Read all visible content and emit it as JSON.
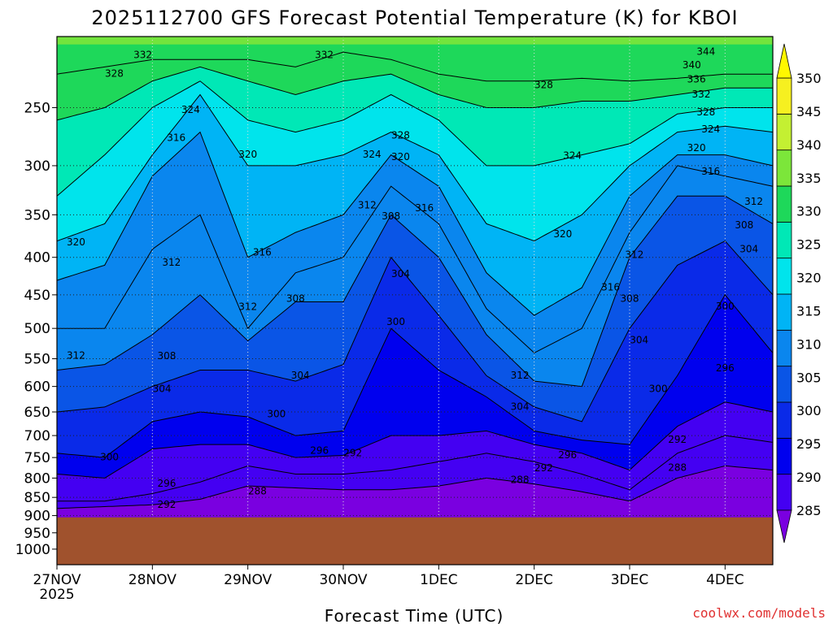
{
  "chart_data": {
    "type": "heatmap",
    "title": "2025112700 GFS Forecast Potential Temperature (K) for KBOI",
    "xlabel": "Forecast Time (UTC)",
    "ylabel": "",
    "x_ticks": [
      "27NOV",
      "28NOV",
      "29NOV",
      "30NOV",
      "1DEC",
      "2DEC",
      "3DEC",
      "4DEC"
    ],
    "x_year": "2025",
    "y_ticks": [
      250,
      300,
      350,
      400,
      450,
      500,
      550,
      600,
      650,
      700,
      750,
      800,
      850,
      900,
      950,
      1000
    ],
    "y_range_hpa": [
      200,
      1050
    ],
    "y_scale": "log",
    "x_range_days": [
      0,
      7.5
    ],
    "colorbar": {
      "levels": [
        285,
        290,
        295,
        300,
        305,
        310,
        315,
        320,
        325,
        330,
        335,
        340,
        345,
        350
      ],
      "labels": [
        "285",
        "290",
        "295",
        "300",
        "305",
        "310",
        "315",
        "320",
        "325",
        "330",
        "335",
        "340",
        "345",
        "350"
      ],
      "colors": [
        "#7a00e0",
        "#4400f2",
        "#0000ee",
        "#0a2ae8",
        "#0a55e6",
        "#0a86ee",
        "#00b4f5",
        "#00e4ec",
        "#00e8b6",
        "#1ed85a",
        "#7ce63a",
        "#c4f032",
        "#f6f020",
        "#fff800"
      ]
    },
    "ground_color": "#a0522d",
    "surface_pressure_hpa": 905,
    "time_days": [
      0,
      0.5,
      1,
      1.5,
      2,
      2.5,
      3,
      3.5,
      4,
      4.5,
      5,
      5.5,
      6,
      6.5,
      7,
      7.5
    ],
    "isentropes": [
      {
        "theta": 288,
        "pressure": [
          880,
          875,
          870,
          855,
          820,
          825,
          830,
          830,
          820,
          800,
          815,
          835,
          860,
          800,
          770,
          780
        ]
      },
      {
        "theta": 292,
        "pressure": [
          860,
          860,
          840,
          810,
          770,
          790,
          790,
          780,
          760,
          740,
          760,
          790,
          830,
          740,
          700,
          715
        ]
      },
      {
        "theta": 296,
        "pressure": [
          790,
          800,
          730,
          720,
          720,
          750,
          745,
          700,
          700,
          690,
          720,
          740,
          780,
          680,
          630,
          650
        ]
      },
      {
        "theta": 300,
        "pressure": [
          740,
          750,
          670,
          650,
          660,
          700,
          690,
          500,
          570,
          620,
          690,
          710,
          720,
          580,
          450,
          540
        ]
      },
      {
        "theta": 304,
        "pressure": [
          650,
          640,
          600,
          570,
          570,
          590,
          560,
          400,
          480,
          580,
          640,
          670,
          500,
          410,
          380,
          450
        ]
      },
      {
        "theta": 308,
        "pressure": [
          570,
          560,
          510,
          450,
          520,
          460,
          460,
          350,
          400,
          510,
          590,
          600,
          400,
          330,
          330,
          360
        ]
      },
      {
        "theta": 312,
        "pressure": [
          500,
          500,
          390,
          350,
          500,
          420,
          400,
          320,
          360,
          470,
          540,
          500,
          370,
          300,
          310,
          320
        ]
      },
      {
        "theta": 316,
        "pressure": [
          430,
          410,
          310,
          270,
          400,
          370,
          350,
          290,
          320,
          420,
          480,
          440,
          330,
          290,
          290,
          300
        ]
      },
      {
        "theta": 320,
        "pressure": [
          380,
          360,
          290,
          240,
          300,
          300,
          290,
          270,
          290,
          360,
          380,
          350,
          300,
          270,
          265,
          270
        ]
      },
      {
        "theta": 324,
        "pressure": [
          330,
          290,
          250,
          230,
          260,
          270,
          260,
          240,
          260,
          300,
          300,
          290,
          280,
          255,
          250,
          250
        ]
      },
      {
        "theta": 328,
        "pressure": [
          260,
          250,
          230,
          220,
          230,
          240,
          230,
          225,
          240,
          250,
          250,
          245,
          245,
          240,
          235,
          235
        ]
      },
      {
        "theta": 332,
        "pressure": [
          225,
          220,
          215,
          215,
          215,
          220,
          210,
          215,
          225,
          230,
          230,
          228,
          230,
          228,
          225,
          225
        ]
      }
    ],
    "contour_labels": [
      {
        "text": "332",
        "day": 0.9,
        "p": 212
      },
      {
        "text": "328",
        "day": 0.6,
        "p": 225
      },
      {
        "text": "324",
        "day": 1.4,
        "p": 252
      },
      {
        "text": "316",
        "day": 1.25,
        "p": 275
      },
      {
        "text": "320",
        "day": 2.0,
        "p": 290
      },
      {
        "text": "332",
        "day": 2.8,
        "p": 212
      },
      {
        "text": "328",
        "day": 3.6,
        "p": 273
      },
      {
        "text": "324",
        "day": 3.3,
        "p": 290
      },
      {
        "text": "320",
        "day": 3.6,
        "p": 292
      },
      {
        "text": "328",
        "day": 5.1,
        "p": 233
      },
      {
        "text": "324",
        "day": 5.4,
        "p": 291
      },
      {
        "text": "312",
        "day": 3.25,
        "p": 340
      },
      {
        "text": "308",
        "day": 3.5,
        "p": 352
      },
      {
        "text": "316",
        "day": 3.85,
        "p": 343
      },
      {
        "text": "320",
        "day": 5.3,
        "p": 372
      },
      {
        "text": "316",
        "day": 2.15,
        "p": 394
      },
      {
        "text": "320",
        "day": 0.2,
        "p": 382
      },
      {
        "text": "312",
        "day": 1.2,
        "p": 407
      },
      {
        "text": "304",
        "day": 3.6,
        "p": 422
      },
      {
        "text": "308",
        "day": 2.5,
        "p": 456
      },
      {
        "text": "312",
        "day": 2.0,
        "p": 468
      },
      {
        "text": "316",
        "day": 5.8,
        "p": 440
      },
      {
        "text": "308",
        "day": 6.0,
        "p": 456
      },
      {
        "text": "312",
        "day": 6.05,
        "p": 397
      },
      {
        "text": "300",
        "day": 3.55,
        "p": 490
      },
      {
        "text": "304",
        "day": 6.1,
        "p": 519
      },
      {
        "text": "312",
        "day": 0.2,
        "p": 545
      },
      {
        "text": "308",
        "day": 1.15,
        "p": 546
      },
      {
        "text": "304",
        "day": 2.55,
        "p": 580
      },
      {
        "text": "312",
        "day": 4.85,
        "p": 580
      },
      {
        "text": "304",
        "day": 1.1,
        "p": 605
      },
      {
        "text": "300",
        "day": 2.3,
        "p": 655
      },
      {
        "text": "304",
        "day": 4.85,
        "p": 640
      },
      {
        "text": "300",
        "day": 6.3,
        "p": 605
      },
      {
        "text": "296",
        "day": 7.0,
        "p": 567
      },
      {
        "text": "300",
        "day": 7.0,
        "p": 467
      },
      {
        "text": "304",
        "day": 7.25,
        "p": 390
      },
      {
        "text": "308",
        "day": 7.2,
        "p": 362
      },
      {
        "text": "312",
        "day": 7.3,
        "p": 336
      },
      {
        "text": "316",
        "day": 6.85,
        "p": 306
      },
      {
        "text": "320",
        "day": 6.7,
        "p": 284
      },
      {
        "text": "324",
        "day": 6.85,
        "p": 268
      },
      {
        "text": "328",
        "day": 6.8,
        "p": 254
      },
      {
        "text": "332",
        "day": 6.75,
        "p": 240
      },
      {
        "text": "336",
        "day": 6.7,
        "p": 229
      },
      {
        "text": "340",
        "day": 6.65,
        "p": 219
      },
      {
        "text": "344",
        "day": 6.8,
        "p": 210
      },
      {
        "text": "300",
        "day": 0.55,
        "p": 750
      },
      {
        "text": "296",
        "day": 2.75,
        "p": 735
      },
      {
        "text": "292",
        "day": 3.1,
        "p": 740
      },
      {
        "text": "296",
        "day": 1.15,
        "p": 815
      },
      {
        "text": "292",
        "day": 1.15,
        "p": 870
      },
      {
        "text": "288",
        "day": 2.1,
        "p": 835
      },
      {
        "text": "288",
        "day": 4.85,
        "p": 805
      },
      {
        "text": "292",
        "day": 5.1,
        "p": 776
      },
      {
        "text": "296",
        "day": 5.35,
        "p": 745
      },
      {
        "text": "292",
        "day": 6.5,
        "p": 710
      },
      {
        "text": "288",
        "day": 6.5,
        "p": 775
      }
    ]
  },
  "footer": {
    "xlabel": "Forecast Time (UTC)",
    "credit": "coolwx.com/models"
  }
}
